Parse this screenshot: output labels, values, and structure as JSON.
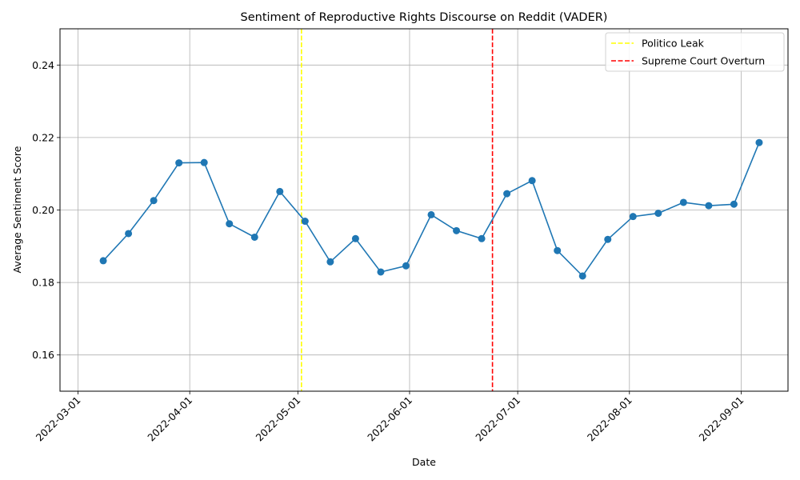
{
  "chart_data": {
    "type": "line",
    "title": "Sentiment of Reproductive Rights Discourse on Reddit (VADER)",
    "xlabel": "Date",
    "ylabel": "Average Sentiment Score",
    "xlim": [
      "2022-02-24",
      "2022-09-14"
    ],
    "ylim": [
      0.15,
      0.25
    ],
    "x_ticks": [
      "2022-03-01",
      "2022-04-01",
      "2022-05-01",
      "2022-06-01",
      "2022-07-01",
      "2022-08-01",
      "2022-09-01"
    ],
    "y_ticks": [
      "0.16",
      "0.18",
      "0.20",
      "0.22",
      "0.24"
    ],
    "grid": true,
    "legend_position": "top-right",
    "series": [
      {
        "color": "#1f77b4",
        "marker": "circle",
        "points": [
          {
            "x": "2022-03-08",
            "y": 0.186
          },
          {
            "x": "2022-03-15",
            "y": 0.1935
          },
          {
            "x": "2022-03-22",
            "y": 0.2026
          },
          {
            "x": "2022-03-29",
            "y": 0.213
          },
          {
            "x": "2022-04-05",
            "y": 0.2131
          },
          {
            "x": "2022-04-12",
            "y": 0.1962
          },
          {
            "x": "2022-04-19",
            "y": 0.1925
          },
          {
            "x": "2022-04-26",
            "y": 0.2051
          },
          {
            "x": "2022-05-03",
            "y": 0.1969
          },
          {
            "x": "2022-05-10",
            "y": 0.1857
          },
          {
            "x": "2022-05-17",
            "y": 0.1921
          },
          {
            "x": "2022-05-24",
            "y": 0.1829
          },
          {
            "x": "2022-05-31",
            "y": 0.1846
          },
          {
            "x": "2022-06-07",
            "y": 0.1987
          },
          {
            "x": "2022-06-14",
            "y": 0.1943
          },
          {
            "x": "2022-06-21",
            "y": 0.1921
          },
          {
            "x": "2022-06-28",
            "y": 0.2045
          },
          {
            "x": "2022-07-05",
            "y": 0.2081
          },
          {
            "x": "2022-07-12",
            "y": 0.1888
          },
          {
            "x": "2022-07-19",
            "y": 0.1818
          },
          {
            "x": "2022-07-26",
            "y": 0.1919
          },
          {
            "x": "2022-08-02",
            "y": 0.1982
          },
          {
            "x": "2022-08-09",
            "y": 0.1991
          },
          {
            "x": "2022-08-16",
            "y": 0.2021
          },
          {
            "x": "2022-08-23",
            "y": 0.2012
          },
          {
            "x": "2022-08-30",
            "y": 0.2016
          },
          {
            "x": "2022-09-06",
            "y": 0.2186
          }
        ]
      }
    ],
    "vlines": [
      {
        "label": "Politico Leak",
        "x": "2022-05-02",
        "color": "#ffff00",
        "style": "dashed"
      },
      {
        "label": "Supreme Court Overturn",
        "x": "2022-06-24",
        "color": "#ff0000",
        "style": "dashed"
      }
    ]
  }
}
